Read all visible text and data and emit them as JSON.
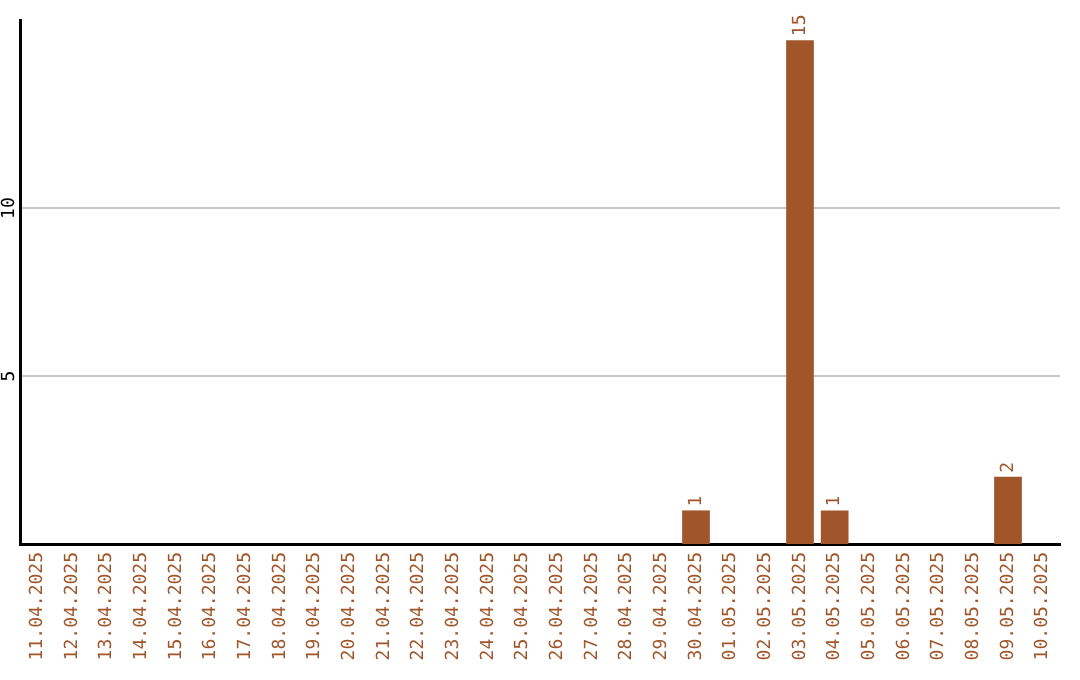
{
  "chart_data": {
    "type": "bar",
    "categories": [
      "11.04.2025",
      "12.04.2025",
      "13.04.2025",
      "14.04.2025",
      "15.04.2025",
      "16.04.2025",
      "17.04.2025",
      "18.04.2025",
      "19.04.2025",
      "20.04.2025",
      "21.04.2025",
      "22.04.2025",
      "23.04.2025",
      "24.04.2025",
      "25.04.2025",
      "26.04.2025",
      "27.04.2025",
      "28.04.2025",
      "29.04.2025",
      "30.04.2025",
      "01.05.2025",
      "02.05.2025",
      "03.05.2025",
      "04.05.2025",
      "05.05.2025",
      "06.05.2025",
      "07.05.2025",
      "08.05.2025",
      "09.05.2025",
      "10.05.2025"
    ],
    "values": [
      0,
      0,
      0,
      0,
      0,
      0,
      0,
      0,
      0,
      0,
      0,
      0,
      0,
      0,
      0,
      0,
      0,
      0,
      0,
      1,
      0,
      0,
      15,
      1,
      0,
      0,
      0,
      0,
      2,
      0
    ],
    "value_labels": [
      null,
      null,
      null,
      null,
      null,
      null,
      null,
      null,
      null,
      null,
      null,
      null,
      null,
      null,
      null,
      null,
      null,
      null,
      null,
      "1",
      null,
      null,
      "15",
      "1",
      null,
      null,
      null,
      null,
      "2",
      null
    ],
    "color": "#a0562a",
    "ylim": [
      0,
      15.6
    ],
    "yticks": [
      5,
      10
    ],
    "grid": "y",
    "legend": false
  }
}
